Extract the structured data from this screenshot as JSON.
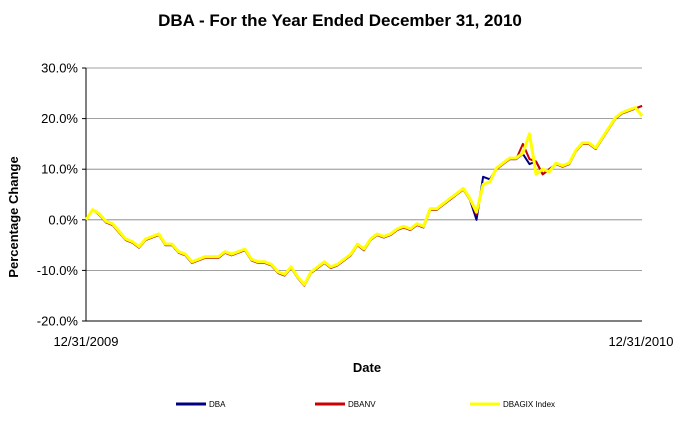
{
  "chart_data": {
    "type": "line",
    "title": "DBA - For the Year Ended December 31, 2010",
    "xlabel": "Date",
    "ylabel": "Percentage Change",
    "x_tick_labels": [
      "12/31/2009",
      "12/31/2010"
    ],
    "y_ticks": [
      "30.0%",
      "20.0%",
      "10.0%",
      "0.0%",
      "-10.0%",
      "-20.0%"
    ],
    "ylim": [
      -20,
      30
    ],
    "grid": "horizontal",
    "legend_position": "bottom",
    "x_unit": "trading day index (0 = 12/31/2009, 252 = 12/31/2010)",
    "x": [
      0,
      3,
      6,
      9,
      12,
      15,
      18,
      21,
      24,
      27,
      30,
      33,
      36,
      39,
      42,
      45,
      48,
      51,
      54,
      57,
      60,
      63,
      66,
      69,
      72,
      75,
      78,
      81,
      84,
      87,
      90,
      93,
      96,
      99,
      102,
      105,
      108,
      111,
      114,
      117,
      120,
      123,
      126,
      129,
      132,
      135,
      138,
      141,
      144,
      147,
      150,
      153,
      156,
      159,
      162,
      165,
      168,
      171,
      174,
      177,
      180,
      183,
      186,
      189,
      192,
      195,
      198,
      201,
      204,
      207,
      210,
      213,
      216,
      219,
      222,
      225,
      228,
      231,
      234,
      237,
      240,
      243,
      246,
      249,
      252
    ],
    "series": [
      {
        "name": "DBA",
        "color": "#000080",
        "values": [
          0,
          2,
          1,
          -0.5,
          -1,
          -2.5,
          -4,
          -4.5,
          -5.5,
          -4,
          -3.5,
          -3,
          -5,
          -5,
          -6.5,
          -7,
          -8.5,
          -8,
          -7.5,
          -7.5,
          -7.5,
          -6.5,
          -7,
          -6.5,
          -6,
          -8,
          -8.5,
          -8.5,
          -9,
          -10.5,
          -11,
          -9.5,
          -11.5,
          -13,
          -10.5,
          -9.5,
          -8.5,
          -9.5,
          -9,
          -8,
          -7,
          -5,
          -6,
          -4,
          -3,
          -3.5,
          -3,
          -2,
          -1.5,
          -2,
          -1,
          -1.5,
          2,
          2,
          3,
          4,
          5,
          6,
          4,
          0,
          8.5,
          8,
          10,
          11,
          12,
          12,
          13,
          11,
          11.5,
          9,
          10,
          11,
          10.5,
          11,
          13.5,
          15,
          15,
          14,
          16,
          18,
          20,
          21,
          21.5,
          22,
          22.5
        ]
      },
      {
        "name": "DBANV",
        "color": "#cc0000",
        "values": [
          0,
          2,
          1,
          -0.5,
          -1,
          -2.5,
          -4,
          -4.5,
          -5.5,
          -4,
          -3.5,
          -3,
          -5,
          -5,
          -6.5,
          -7,
          -8.5,
          -8,
          -7.5,
          -7.5,
          -7.5,
          -6.5,
          -7,
          -6.5,
          -6,
          -8,
          -8.5,
          -8.5,
          -9,
          -10.5,
          -11,
          -9.5,
          -11.5,
          -13,
          -10.5,
          -9.5,
          -8.5,
          -9.5,
          -9,
          -8,
          -7,
          -5,
          -6,
          -4,
          -3,
          -3.5,
          -3,
          -2,
          -1.5,
          -2,
          -1,
          -1.5,
          2,
          2,
          3,
          4,
          5,
          6,
          4,
          1,
          7,
          7.5,
          10,
          11,
          12,
          12,
          15,
          12,
          11.5,
          9,
          10,
          11,
          10.5,
          11,
          13.5,
          15,
          15,
          14,
          16,
          18,
          20,
          21,
          21.5,
          22,
          22.5
        ]
      },
      {
        "name": "DBAGIX Index",
        "color": "#ffff00",
        "values": [
          0,
          2,
          1.2,
          -0.3,
          -0.8,
          -2.3,
          -3.8,
          -4.3,
          -5.3,
          -3.8,
          -3.3,
          -2.8,
          -4.8,
          -4.8,
          -6.3,
          -6.8,
          -8.3,
          -7.8,
          -7.3,
          -7.3,
          -7.3,
          -6.3,
          -6.8,
          -6.3,
          -5.8,
          -7.8,
          -8.3,
          -8.3,
          -8.8,
          -10.3,
          -10.8,
          -9.3,
          -11.3,
          -12.8,
          -10.3,
          -9.3,
          -8.3,
          -9.3,
          -8.8,
          -7.8,
          -6.8,
          -4.8,
          -5.8,
          -3.8,
          -2.8,
          -3.3,
          -2.8,
          -1.8,
          -1.3,
          -1.8,
          -0.8,
          -1.3,
          2.2,
          2.2,
          3.2,
          4.2,
          5.2,
          6.2,
          4.2,
          1.5,
          7,
          7.5,
          10.2,
          11.2,
          12.2,
          12.2,
          13.2,
          17,
          9,
          10,
          9.5,
          11.2,
          10.7,
          11.2,
          13.7,
          15.2,
          15.2,
          14.2,
          16.2,
          18.2,
          20.2,
          21.2,
          21.7,
          22.2,
          20.5
        ]
      }
    ]
  }
}
